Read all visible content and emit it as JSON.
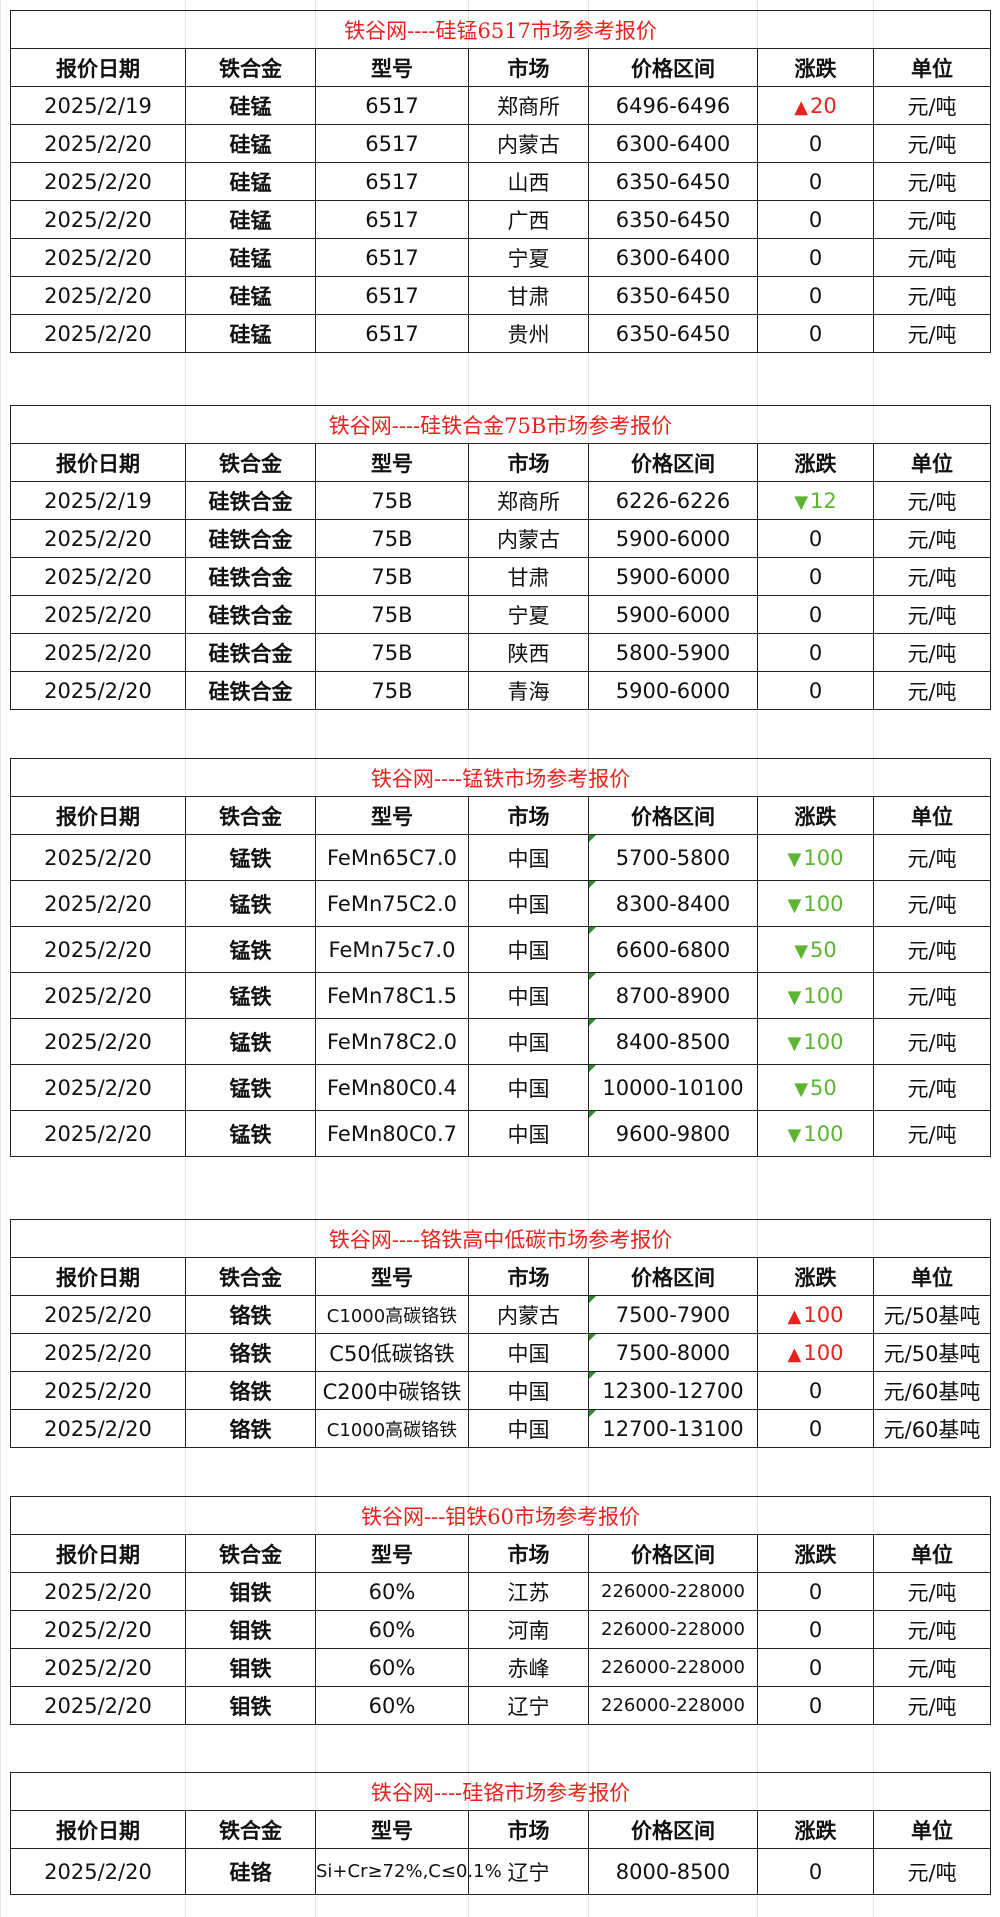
{
  "headers": [
    "报价日期",
    "铁合金",
    "型号",
    "市场",
    "价格区间",
    "涨跌",
    "单位"
  ],
  "tables": [
    {
      "title": "铁谷网----硅锰6517市场参考报价",
      "rows": [
        {
          "date": "2025/2/19",
          "alloy": "硅锰",
          "model": "6517",
          "market": "郑商所",
          "price": "6496-6496",
          "change": "20",
          "dir": "up",
          "unit": "元/吨"
        },
        {
          "date": "2025/2/20",
          "alloy": "硅锰",
          "model": "6517",
          "market": "内蒙古",
          "price": "6300-6400",
          "change": "0",
          "dir": "flat",
          "unit": "元/吨"
        },
        {
          "date": "2025/2/20",
          "alloy": "硅锰",
          "model": "6517",
          "market": "山西",
          "price": "6350-6450",
          "change": "0",
          "dir": "flat",
          "unit": "元/吨"
        },
        {
          "date": "2025/2/20",
          "alloy": "硅锰",
          "model": "6517",
          "market": "广西",
          "price": "6350-6450",
          "change": "0",
          "dir": "flat",
          "unit": "元/吨"
        },
        {
          "date": "2025/2/20",
          "alloy": "硅锰",
          "model": "6517",
          "market": "宁夏",
          "price": "6300-6400",
          "change": "0",
          "dir": "flat",
          "unit": "元/吨"
        },
        {
          "date": "2025/2/20",
          "alloy": "硅锰",
          "model": "6517",
          "market": "甘肃",
          "price": "6350-6450",
          "change": "0",
          "dir": "flat",
          "unit": "元/吨"
        },
        {
          "date": "2025/2/20",
          "alloy": "硅锰",
          "model": "6517",
          "market": "贵州",
          "price": "6350-6450",
          "change": "0",
          "dir": "flat",
          "unit": "元/吨"
        }
      ]
    },
    {
      "title": "铁谷网----硅铁合金75B市场参考报价",
      "rows": [
        {
          "date": "2025/2/19",
          "alloy": "硅铁合金",
          "model": "75B",
          "market": "郑商所",
          "price": "6226-6226",
          "change": "12",
          "dir": "down",
          "unit": "元/吨"
        },
        {
          "date": "2025/2/20",
          "alloy": "硅铁合金",
          "model": "75B",
          "market": "内蒙古",
          "price": "5900-6000",
          "change": "0",
          "dir": "flat",
          "unit": "元/吨"
        },
        {
          "date": "2025/2/20",
          "alloy": "硅铁合金",
          "model": "75B",
          "market": "甘肃",
          "price": "5900-6000",
          "change": "0",
          "dir": "flat",
          "unit": "元/吨"
        },
        {
          "date": "2025/2/20",
          "alloy": "硅铁合金",
          "model": "75B",
          "market": "宁夏",
          "price": "5900-6000",
          "change": "0",
          "dir": "flat",
          "unit": "元/吨"
        },
        {
          "date": "2025/2/20",
          "alloy": "硅铁合金",
          "model": "75B",
          "market": "陕西",
          "price": "5800-5900",
          "change": "0",
          "dir": "flat",
          "unit": "元/吨"
        },
        {
          "date": "2025/2/20",
          "alloy": "硅铁合金",
          "model": "75B",
          "market": "青海",
          "price": "5900-6000",
          "change": "0",
          "dir": "flat",
          "unit": "元/吨"
        }
      ]
    },
    {
      "title": "铁谷网----锰铁市场参考报价",
      "rows": [
        {
          "date": "2025/2/20",
          "alloy": "锰铁",
          "model": "FeMn65C7.0",
          "market": "中国",
          "price": "5700-5800",
          "change": "100",
          "dir": "down",
          "unit": "元/吨"
        },
        {
          "date": "2025/2/20",
          "alloy": "锰铁",
          "model": "FeMn75C2.0",
          "market": "中国",
          "price": "8300-8400",
          "change": "100",
          "dir": "down",
          "unit": "元/吨"
        },
        {
          "date": "2025/2/20",
          "alloy": "锰铁",
          "model": "FeMn75c7.0",
          "market": "中国",
          "price": "6600-6800",
          "change": "50",
          "dir": "down",
          "unit": "元/吨"
        },
        {
          "date": "2025/2/20",
          "alloy": "锰铁",
          "model": "FeMn78C1.5",
          "market": "中国",
          "price": "8700-8900",
          "change": "100",
          "dir": "down",
          "unit": "元/吨"
        },
        {
          "date": "2025/2/20",
          "alloy": "锰铁",
          "model": "FeMn78C2.0",
          "market": "中国",
          "price": "8400-8500",
          "change": "100",
          "dir": "down",
          "unit": "元/吨"
        },
        {
          "date": "2025/2/20",
          "alloy": "锰铁",
          "model": "FeMn80C0.4",
          "market": "中国",
          "price": "10000-10100",
          "change": "50",
          "dir": "down",
          "unit": "元/吨"
        },
        {
          "date": "2025/2/20",
          "alloy": "锰铁",
          "model": "FeMn80C0.7",
          "market": "中国",
          "price": "9600-9800",
          "change": "100",
          "dir": "down",
          "unit": "元/吨"
        }
      ]
    },
    {
      "title": "铁谷网----铬铁高中低碳市场参考报价",
      "rows": [
        {
          "date": "2025/2/20",
          "alloy": "铬铁",
          "model": "C1000高碳铬铁",
          "market": "内蒙古",
          "price": "7500-7900",
          "change": "100",
          "dir": "up",
          "unit": "元/50基吨"
        },
        {
          "date": "2025/2/20",
          "alloy": "铬铁",
          "model": "C50低碳铬铁",
          "market": "中国",
          "price": "7500-8000",
          "change": "100",
          "dir": "up",
          "unit": "元/50基吨"
        },
        {
          "date": "2025/2/20",
          "alloy": "铬铁",
          "model": "C200中碳铬铁",
          "market": "中国",
          "price": "12300-12700",
          "change": "0",
          "dir": "flat",
          "unit": "元/60基吨"
        },
        {
          "date": "2025/2/20",
          "alloy": "铬铁",
          "model": "C1000高碳铬铁",
          "market": "中国",
          "price": "12700-13100",
          "change": "0",
          "dir": "flat",
          "unit": "元/60基吨"
        }
      ]
    },
    {
      "title": "铁谷网---钼铁60市场参考报价",
      "rows": [
        {
          "date": "2025/2/20",
          "alloy": "钼铁",
          "model": "60%",
          "market": "江苏",
          "price": "226000-228000",
          "change": "0",
          "dir": "flat",
          "unit": "元/吨"
        },
        {
          "date": "2025/2/20",
          "alloy": "钼铁",
          "model": "60%",
          "market": "河南",
          "price": "226000-228000",
          "change": "0",
          "dir": "flat",
          "unit": "元/吨"
        },
        {
          "date": "2025/2/20",
          "alloy": "钼铁",
          "model": "60%",
          "market": "赤峰",
          "price": "226000-228000",
          "change": "0",
          "dir": "flat",
          "unit": "元/吨"
        },
        {
          "date": "2025/2/20",
          "alloy": "钼铁",
          "model": "60%",
          "market": "辽宁",
          "price": "226000-228000",
          "change": "0",
          "dir": "flat",
          "unit": "元/吨"
        }
      ]
    },
    {
      "title": "铁谷网----硅铬市场参考报价",
      "rows": [
        {
          "date": "2025/2/20",
          "alloy": "硅铬",
          "model": "Si+Cr≥72%,C≤0.1%",
          "market": "辽宁",
          "price": "8000-8500",
          "change": "0",
          "dir": "flat",
          "unit": "元/吨"
        }
      ]
    }
  ],
  "colors": {
    "up": "#e8231e",
    "down": "#5cb531",
    "title": "#e8231e"
  },
  "icons": {
    "up": "triangle-up-icon",
    "down": "triangle-down-icon"
  }
}
